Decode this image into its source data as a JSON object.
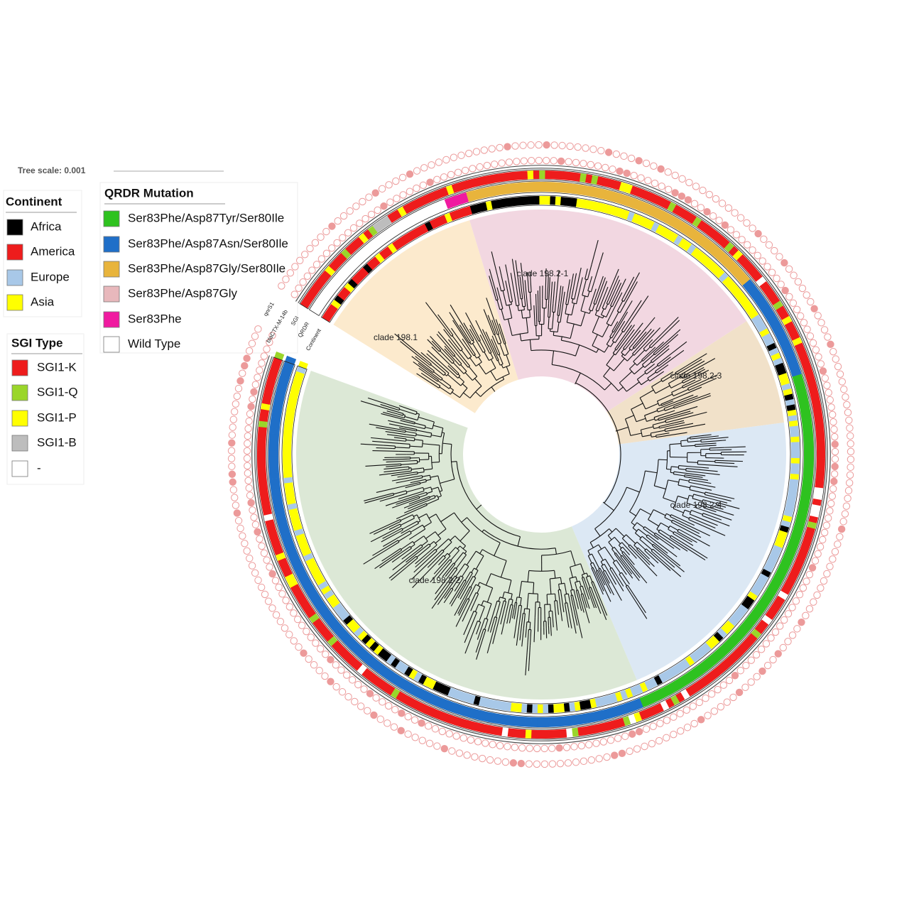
{
  "tree_scale": "Tree scale: 0.001",
  "legends": {
    "continent": {
      "title": "Continent",
      "items": [
        {
          "label": "Africa",
          "color": "#000000"
        },
        {
          "label": "America",
          "color": "#ee1c1c"
        },
        {
          "label": "Europe",
          "color": "#a8c8e8"
        },
        {
          "label": "Asia",
          "color": "#ffff00"
        }
      ]
    },
    "qrdr": {
      "title": "QRDR Mutation",
      "items": [
        {
          "label": "Ser83Phe/Asp87Tyr/Ser80Ile",
          "color": "#2ec21f"
        },
        {
          "label": "Ser83Phe/Asp87Asn/Ser80Ile",
          "color": "#1f6fc8"
        },
        {
          "label": "Ser83Phe/Asp87Gly/Ser80Ile",
          "color": "#e8b43c"
        },
        {
          "label": "Ser83Phe/Asp87Gly",
          "color": "#e8b8bc"
        },
        {
          "label": "Ser83Phe",
          "color": "#f01aa0"
        },
        {
          "label": "Wild Type",
          "color": "#ffffff"
        }
      ]
    },
    "sgi": {
      "title": "SGI Type",
      "items": [
        {
          "label": "SGI1-K",
          "color": "#ee1c1c"
        },
        {
          "label": "SGI1-Q",
          "color": "#9ad62a"
        },
        {
          "label": "SGI1-P",
          "color": "#ffff00"
        },
        {
          "label": "SGI1-B",
          "color": "#bdbdbd"
        },
        {
          "label": "-",
          "color": "#ffffff"
        }
      ]
    }
  },
  "ring_labels": [
    "Continent",
    "QRDR",
    "SGI",
    "blaCTX-M-14b",
    "qnrS1"
  ],
  "clades": [
    {
      "label": "clade 198.1",
      "color": "#fbe6c4"
    },
    {
      "label": "clade 198.2-1",
      "color": "#f0d0dc"
    },
    {
      "label": "clade 198.2-3",
      "color": "#efdcc0"
    },
    {
      "label": "clade 198.2-4",
      "color": "#d6e4f2"
    },
    {
      "label": "clade 198.2-2",
      "color": "#d6e4cf"
    }
  ]
}
